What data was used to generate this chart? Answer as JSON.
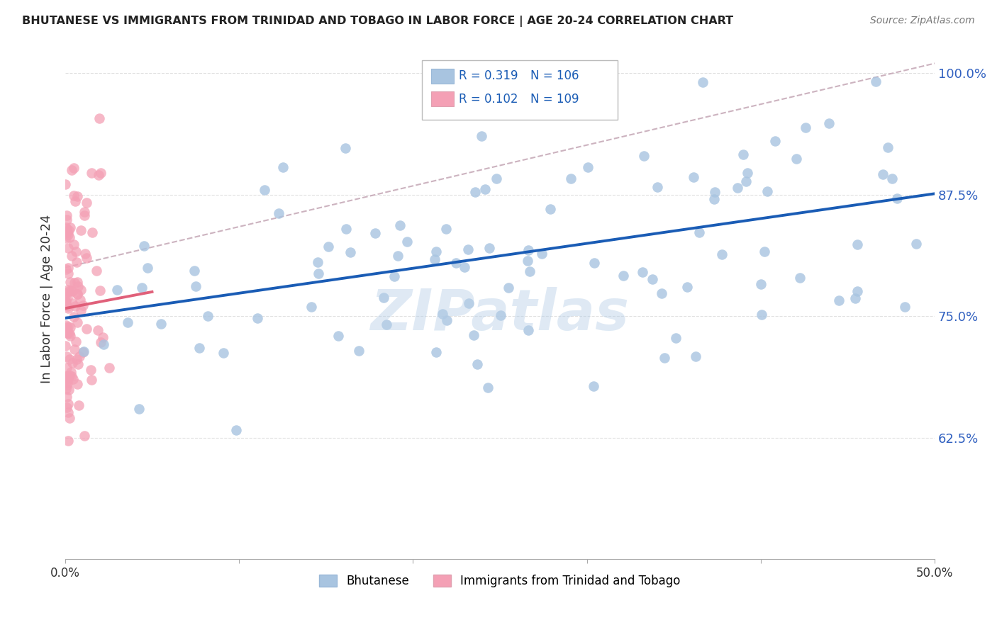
{
  "title": "BHUTANESE VS IMMIGRANTS FROM TRINIDAD AND TOBAGO IN LABOR FORCE | AGE 20-24 CORRELATION CHART",
  "source": "Source: ZipAtlas.com",
  "ylabel": "In Labor Force | Age 20-24",
  "xlim": [
    0.0,
    0.5
  ],
  "ylim": [
    0.5,
    1.035
  ],
  "ytick_positions": [
    0.625,
    0.75,
    0.875,
    1.0
  ],
  "ytick_labels": [
    "62.5%",
    "75.0%",
    "87.5%",
    "100.0%"
  ],
  "xtick_positions": [
    0.0,
    0.1,
    0.2,
    0.3,
    0.4,
    0.5
  ],
  "xtick_labels": [
    "0.0%",
    "",
    "",
    "",
    "",
    "50.0%"
  ],
  "blue_R": 0.319,
  "blue_N": 106,
  "pink_R": 0.102,
  "pink_N": 109,
  "blue_color": "#a8c4e0",
  "pink_color": "#f4a0b5",
  "blue_line_color": "#1a5cb5",
  "pink_line_color": "#e0607a",
  "dash_line_color": "#c0a0b0",
  "watermark": "ZIPatlas",
  "background_color": "#ffffff",
  "grid_color": "#e0e0e0",
  "legend_label_blue": "Bhutanese",
  "legend_label_pink": "Immigrants from Trinidad and Tobago",
  "blue_trend_x0": 0.0,
  "blue_trend_y0": 0.748,
  "blue_trend_x1": 0.5,
  "blue_trend_y1": 0.876,
  "pink_trend_x0": 0.0,
  "pink_trend_y0": 0.758,
  "pink_trend_x1": 0.05,
  "pink_trend_y1": 0.775,
  "dash_trend_x0": 0.0,
  "dash_trend_y0": 0.8,
  "dash_trend_x1": 0.5,
  "dash_trend_y1": 1.01
}
